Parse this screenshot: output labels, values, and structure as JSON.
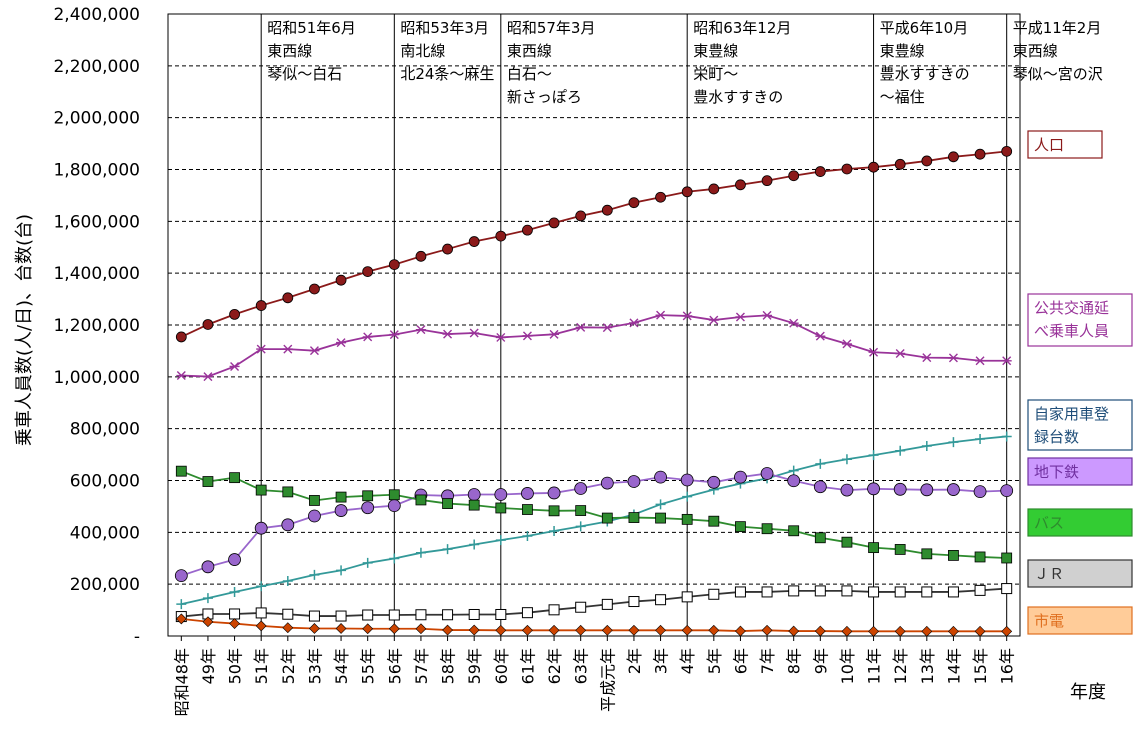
{
  "chart_data": {
    "type": "line",
    "ylabel": "乗車人員数(人/日)、台数(台)",
    "xlabel": "年度",
    "ylim": [
      0,
      2400000
    ],
    "grid": "horizontal dashed",
    "y_ticks": [
      {
        "value": 0,
        "label": "-"
      },
      {
        "value": 200000,
        "label": "200,000"
      },
      {
        "value": 400000,
        "label": "400,000"
      },
      {
        "value": 600000,
        "label": "600,000"
      },
      {
        "value": 800000,
        "label": "800,000"
      },
      {
        "value": 1000000,
        "label": "1,000,000"
      },
      {
        "value": 1200000,
        "label": "1,200,000"
      },
      {
        "value": 1400000,
        "label": "1,400,000"
      },
      {
        "value": 1600000,
        "label": "1,600,000"
      },
      {
        "value": 1800000,
        "label": "1,800,000"
      },
      {
        "value": 2000000,
        "label": "2,000,000"
      },
      {
        "value": 2200000,
        "label": "2,200,000"
      },
      {
        "value": 2400000,
        "label": "2,400,000"
      }
    ],
    "categories": [
      "昭和48年",
      "49年",
      "50年",
      "51年",
      "52年",
      "53年",
      "54年",
      "55年",
      "56年",
      "57年",
      "58年",
      "59年",
      "60年",
      "61年",
      "62年",
      "63年",
      "平成元年",
      "2年",
      "3年",
      "4年",
      "5年",
      "6年",
      "7年",
      "8年",
      "9年",
      "10年",
      "11年",
      "12年",
      "13年",
      "14年",
      "15年",
      "16年"
    ],
    "series": [
      {
        "name": "人口",
        "color": "#8b1a1a",
        "marker": "filled-circle",
        "label_box_fill": "#ffffff",
        "label_box_border": "#8b1a1a",
        "values": [
          1154000,
          1202000,
          1241000,
          1275000,
          1305000,
          1339000,
          1373000,
          1406000,
          1433000,
          1465000,
          1493000,
          1522000,
          1543000,
          1566000,
          1594000,
          1621000,
          1643000,
          1672000,
          1693000,
          1714000,
          1725000,
          1741000,
          1757000,
          1776000,
          1792000,
          1802000,
          1809000,
          1820000,
          1833000,
          1849000,
          1859000,
          1870000
        ]
      },
      {
        "name": "公共交通延べ乗車人員",
        "color": "#993399",
        "marker": "star",
        "label_box_fill": "#ffffff",
        "label_box_border": "#993399",
        "values": [
          1005000,
          1001000,
          1040000,
          1107000,
          1107000,
          1101000,
          1132000,
          1154000,
          1163000,
          1182000,
          1165000,
          1169000,
          1152000,
          1158000,
          1164000,
          1191000,
          1190000,
          1208000,
          1238000,
          1235000,
          1219000,
          1231000,
          1237000,
          1207000,
          1157000,
          1127000,
          1095000,
          1090000,
          1074000,
          1073000,
          1062000,
          1062000
        ]
      },
      {
        "name": "自家用車登録台数",
        "color": "#339999",
        "marker": "plus",
        "label_box_fill": "#ffffff",
        "label_box_border": "#1f4e79",
        "values": [
          123000,
          146000,
          170000,
          192000,
          212000,
          236000,
          253000,
          282000,
          299000,
          321000,
          335000,
          353000,
          370000,
          386000,
          405000,
          423000,
          442000,
          469000,
          508000,
          538000,
          565000,
          588000,
          608000,
          638000,
          664000,
          682000,
          698000,
          715000,
          733000,
          748000,
          760000,
          770000
        ]
      },
      {
        "name": "地下鉄",
        "color": "#9966cc",
        "marker": "open-circle",
        "label_box_fill": "#cc99ff",
        "label_box_border": "#7030a0",
        "values": [
          233000,
          267000,
          295000,
          416000,
          429000,
          463000,
          484000,
          495000,
          503000,
          544000,
          541000,
          546000,
          546000,
          550000,
          552000,
          569000,
          590000,
          596000,
          613000,
          602000,
          593000,
          613000,
          627000,
          599000,
          576000,
          563000,
          568000,
          566000,
          564000,
          565000,
          557000,
          561000
        ]
      },
      {
        "name": "バス",
        "color": "#2e8b2e",
        "marker": "filled-square",
        "label_box_fill": "#33cc33",
        "label_box_border": "#2e8b2e",
        "values": [
          636000,
          596000,
          611000,
          563000,
          556000,
          523000,
          536000,
          541000,
          545000,
          525000,
          511000,
          505000,
          494000,
          488000,
          483000,
          484000,
          455000,
          457000,
          455000,
          450000,
          443000,
          422000,
          414000,
          406000,
          379000,
          362000,
          341000,
          334000,
          317000,
          311000,
          305000,
          301000
        ]
      },
      {
        "name": "ＪＲ",
        "color": "#333333",
        "marker": "open-square",
        "label_box_fill": "#d0d0d0",
        "label_box_border": "#333333",
        "values": [
          75000,
          85000,
          85000,
          89000,
          84000,
          77000,
          77000,
          81000,
          81000,
          82000,
          82000,
          83000,
          83000,
          90000,
          101000,
          111000,
          122000,
          133000,
          140000,
          151000,
          161000,
          170000,
          170000,
          174000,
          174000,
          174000,
          170000,
          170000,
          170000,
          170000,
          176000,
          183000
        ]
      },
      {
        "name": "市電",
        "color": "#cc4400",
        "marker": "filled-diamond",
        "label_box_fill": "#ffcc99",
        "label_box_border": "#e07020",
        "values": [
          66000,
          55000,
          48000,
          39000,
          32000,
          29000,
          29000,
          28000,
          28000,
          28000,
          23000,
          23000,
          22000,
          22000,
          22000,
          22000,
          22000,
          22000,
          22000,
          22000,
          22000,
          19000,
          22000,
          19000,
          19000,
          18000,
          18000,
          18000,
          18000,
          18000,
          18000,
          18000
        ]
      }
    ],
    "annotations": [
      {
        "year_index": 3.5,
        "lines": [
          "昭和51年6月",
          "東西線",
          "琴似～白石"
        ]
      },
      {
        "year_index": 8.5,
        "lines": [
          "昭和53年3月",
          "南北線",
          "北24条～麻生"
        ]
      },
      {
        "year_index": 12.5,
        "lines": [
          "昭和57年3月",
          "東西線",
          "白石～",
          "新さっぽろ"
        ]
      },
      {
        "year_index": 19.5,
        "lines": [
          "昭和63年12月",
          "東豊線",
          "栄町～",
          "豊水すすきの"
        ]
      },
      {
        "year_index": 26.5,
        "lines": [
          "平成6年10月",
          "東豊線",
          "豊水すすきの",
          "～福住"
        ]
      },
      {
        "year_index": 31.5,
        "lines": [
          "平成11年2月",
          "東西線",
          "琴似～宮の沢"
        ]
      }
    ]
  }
}
